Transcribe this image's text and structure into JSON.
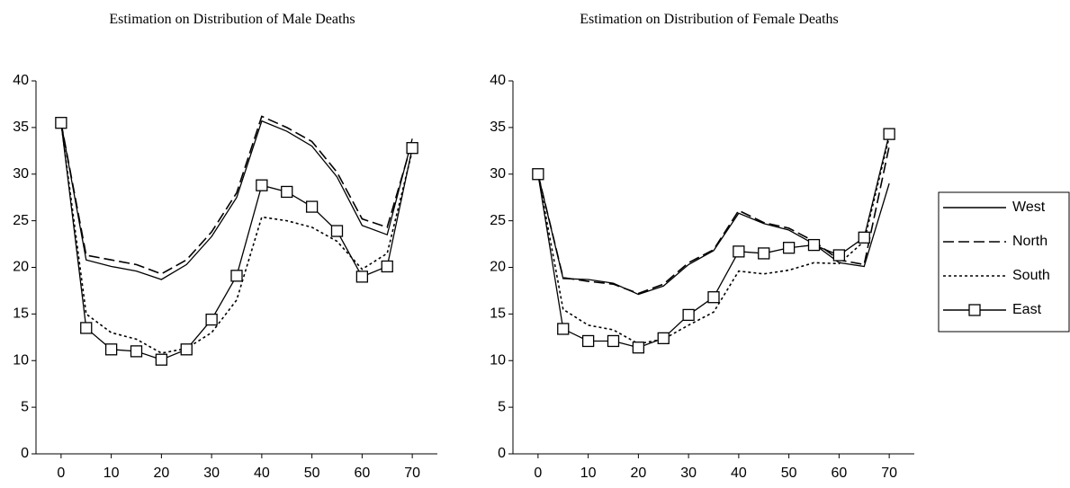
{
  "chart_data": [
    {
      "type": "line",
      "title": "Estimation on Distribution of Male Deaths",
      "x": [
        0,
        5,
        10,
        15,
        20,
        25,
        30,
        35,
        40,
        45,
        50,
        55,
        60,
        65,
        70
      ],
      "xlim": [
        -5,
        75
      ],
      "xticks": [
        0,
        10,
        20,
        30,
        40,
        50,
        60,
        70
      ],
      "ylim": [
        0,
        40
      ],
      "yticks": [
        0,
        5,
        10,
        15,
        20,
        25,
        30,
        35,
        40
      ],
      "grid": false,
      "legend": "none",
      "series": [
        {
          "name": "West",
          "color": "#000000",
          "dash": "solid",
          "marker": "none",
          "values": [
            35.5,
            20.8,
            20.1,
            19.6,
            18.7,
            20.3,
            23.3,
            27.5,
            35.7,
            34.6,
            33,
            29.7,
            24.5,
            23.5,
            33.8
          ]
        },
        {
          "name": "North",
          "color": "#000000",
          "dash": "dashed",
          "marker": "none",
          "values": [
            35.5,
            21.3,
            20.8,
            20.3,
            19.3,
            20.8,
            23.8,
            28,
            36.2,
            35,
            33.5,
            30.2,
            25.2,
            24.3,
            33.5
          ]
        },
        {
          "name": "South",
          "color": "#000000",
          "dash": "dotted",
          "marker": "none",
          "values": [
            35.5,
            15,
            13,
            12.3,
            10.8,
            11.3,
            13,
            16.5,
            25.4,
            25,
            24.3,
            22.8,
            19.8,
            21.5,
            32.5
          ]
        },
        {
          "name": "East",
          "color": "#000000",
          "dash": "solid",
          "marker": "square",
          "values": [
            35.5,
            13.5,
            11.2,
            11,
            10.1,
            11.2,
            14.4,
            19.1,
            28.8,
            28.1,
            26.5,
            23.9,
            19,
            20.1,
            32.8
          ]
        }
      ]
    },
    {
      "type": "line",
      "title": "Estimation on Distribution of Female Deaths",
      "x": [
        0,
        5,
        10,
        15,
        20,
        25,
        30,
        35,
        40,
        45,
        50,
        55,
        60,
        65,
        70
      ],
      "xlim": [
        -5,
        75
      ],
      "xticks": [
        0,
        10,
        20,
        30,
        40,
        50,
        60,
        70
      ],
      "ylim": [
        0,
        40
      ],
      "yticks": [
        0,
        5,
        10,
        15,
        20,
        25,
        30,
        35,
        40
      ],
      "grid": false,
      "legend": "right",
      "series": [
        {
          "name": "West",
          "color": "#000000",
          "dash": "solid",
          "marker": "none",
          "values": [
            30,
            18.8,
            18.7,
            18.3,
            17.1,
            18,
            20.3,
            21.8,
            25.8,
            24.7,
            24,
            22.5,
            20.5,
            20.1,
            29
          ]
        },
        {
          "name": "North",
          "color": "#000000",
          "dash": "dashed",
          "marker": "none",
          "values": [
            30,
            18.9,
            18.5,
            18.2,
            17.2,
            18.2,
            20.5,
            21.9,
            26.1,
            24.8,
            24.2,
            22.8,
            20.8,
            20.3,
            33
          ]
        },
        {
          "name": "South",
          "color": "#000000",
          "dash": "dotted",
          "marker": "none",
          "values": [
            30,
            15.5,
            13.8,
            13.3,
            11.8,
            12.3,
            13.8,
            15.2,
            19.6,
            19.3,
            19.7,
            20.5,
            20.4,
            22.8,
            34
          ]
        },
        {
          "name": "East",
          "color": "#000000",
          "dash": "solid",
          "marker": "square",
          "values": [
            30,
            13.4,
            12.1,
            12.1,
            11.4,
            12.4,
            14.9,
            16.8,
            21.7,
            21.5,
            22.1,
            22.4,
            21.3,
            23.2,
            34.3
          ]
        }
      ]
    }
  ]
}
